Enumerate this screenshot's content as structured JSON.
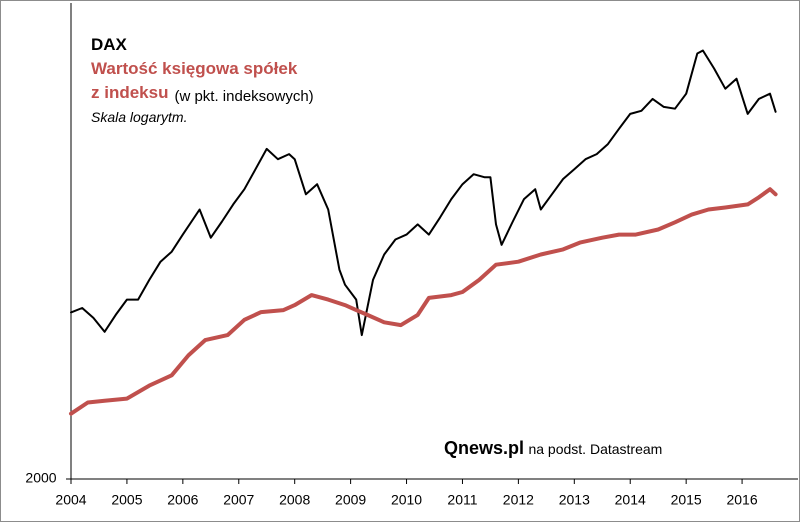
{
  "chart_data": {
    "type": "line",
    "log_scale": true,
    "grid": false,
    "xlim": [
      2004,
      2017
    ],
    "xticks": [
      2004,
      2005,
      2006,
      2007,
      2008,
      2009,
      2010,
      2011,
      2012,
      2013,
      2014,
      2015,
      2016
    ],
    "ylim": [
      2000,
      14500
    ],
    "yticks": [
      2000
    ],
    "series": [
      {
        "name": "DAX",
        "color": "#000000",
        "x": [
          2004.0,
          2004.2,
          2004.4,
          2004.6,
          2004.8,
          2005.0,
          2005.2,
          2005.4,
          2005.6,
          2005.8,
          2006.0,
          2006.3,
          2006.5,
          2006.7,
          2006.9,
          2007.1,
          2007.3,
          2007.5,
          2007.7,
          2007.9,
          2008.0,
          2008.2,
          2008.4,
          2008.6,
          2008.8,
          2008.9,
          2009.1,
          2009.2,
          2009.4,
          2009.6,
          2009.8,
          2010.0,
          2010.2,
          2010.4,
          2010.6,
          2010.8,
          2011.0,
          2011.2,
          2011.4,
          2011.5,
          2011.6,
          2011.7,
          2011.9,
          2012.1,
          2012.3,
          2012.4,
          2012.6,
          2012.8,
          2013.0,
          2013.2,
          2013.4,
          2013.6,
          2013.8,
          2014.0,
          2014.2,
          2014.4,
          2014.6,
          2014.8,
          2015.0,
          2015.2,
          2015.3,
          2015.5,
          2015.7,
          2015.9,
          2016.1,
          2016.3,
          2016.5,
          2016.6
        ],
        "values": [
          4000,
          4075,
          3910,
          3690,
          3960,
          4220,
          4220,
          4580,
          4940,
          5150,
          5530,
          6140,
          5460,
          5840,
          6270,
          6680,
          7260,
          7900,
          7570,
          7730,
          7570,
          6540,
          6820,
          6140,
          4780,
          4490,
          4220,
          3640,
          4580,
          5090,
          5420,
          5530,
          5770,
          5530,
          5940,
          6410,
          6820,
          7110,
          7020,
          7020,
          5770,
          5300,
          5840,
          6410,
          6680,
          6140,
          6540,
          6970,
          7260,
          7570,
          7730,
          8060,
          8590,
          9140,
          9260,
          9730,
          9410,
          9340,
          9940,
          11750,
          11900,
          11040,
          10150,
          10580,
          9140,
          9730,
          9940,
          9220
        ]
      },
      {
        "name": "Wartość księgowa spółek z indeksu",
        "color": "#c0504d",
        "x": [
          2004.0,
          2004.3,
          2004.6,
          2005.0,
          2005.4,
          2005.8,
          2006.1,
          2006.4,
          2006.8,
          2007.1,
          2007.4,
          2007.8,
          2008.0,
          2008.3,
          2008.6,
          2008.9,
          2009.1,
          2009.3,
          2009.6,
          2009.9,
          2010.2,
          2010.4,
          2010.8,
          2011.0,
          2011.3,
          2011.6,
          2012.0,
          2012.4,
          2012.8,
          2013.1,
          2013.5,
          2013.8,
          2014.1,
          2014.5,
          2014.8,
          2015.1,
          2015.4,
          2015.7,
          2016.1,
          2016.3,
          2016.5,
          2016.6
        ],
        "values": [
          2625,
          2750,
          2770,
          2795,
          2950,
          3080,
          3345,
          3565,
          3640,
          3880,
          4005,
          4040,
          4125,
          4300,
          4220,
          4125,
          4040,
          3960,
          3840,
          3795,
          3960,
          4250,
          4300,
          4355,
          4580,
          4880,
          4940,
          5090,
          5200,
          5350,
          5460,
          5530,
          5530,
          5650,
          5820,
          6010,
          6140,
          6190,
          6270,
          6460,
          6680,
          6540
        ]
      }
    ],
    "annotations": {
      "unit_note": "(w pkt. indeksowych)",
      "scale_note": "Skala logarytm.",
      "source_brand": "Qnews.pl",
      "source_text": "na podst. Datastream"
    }
  }
}
